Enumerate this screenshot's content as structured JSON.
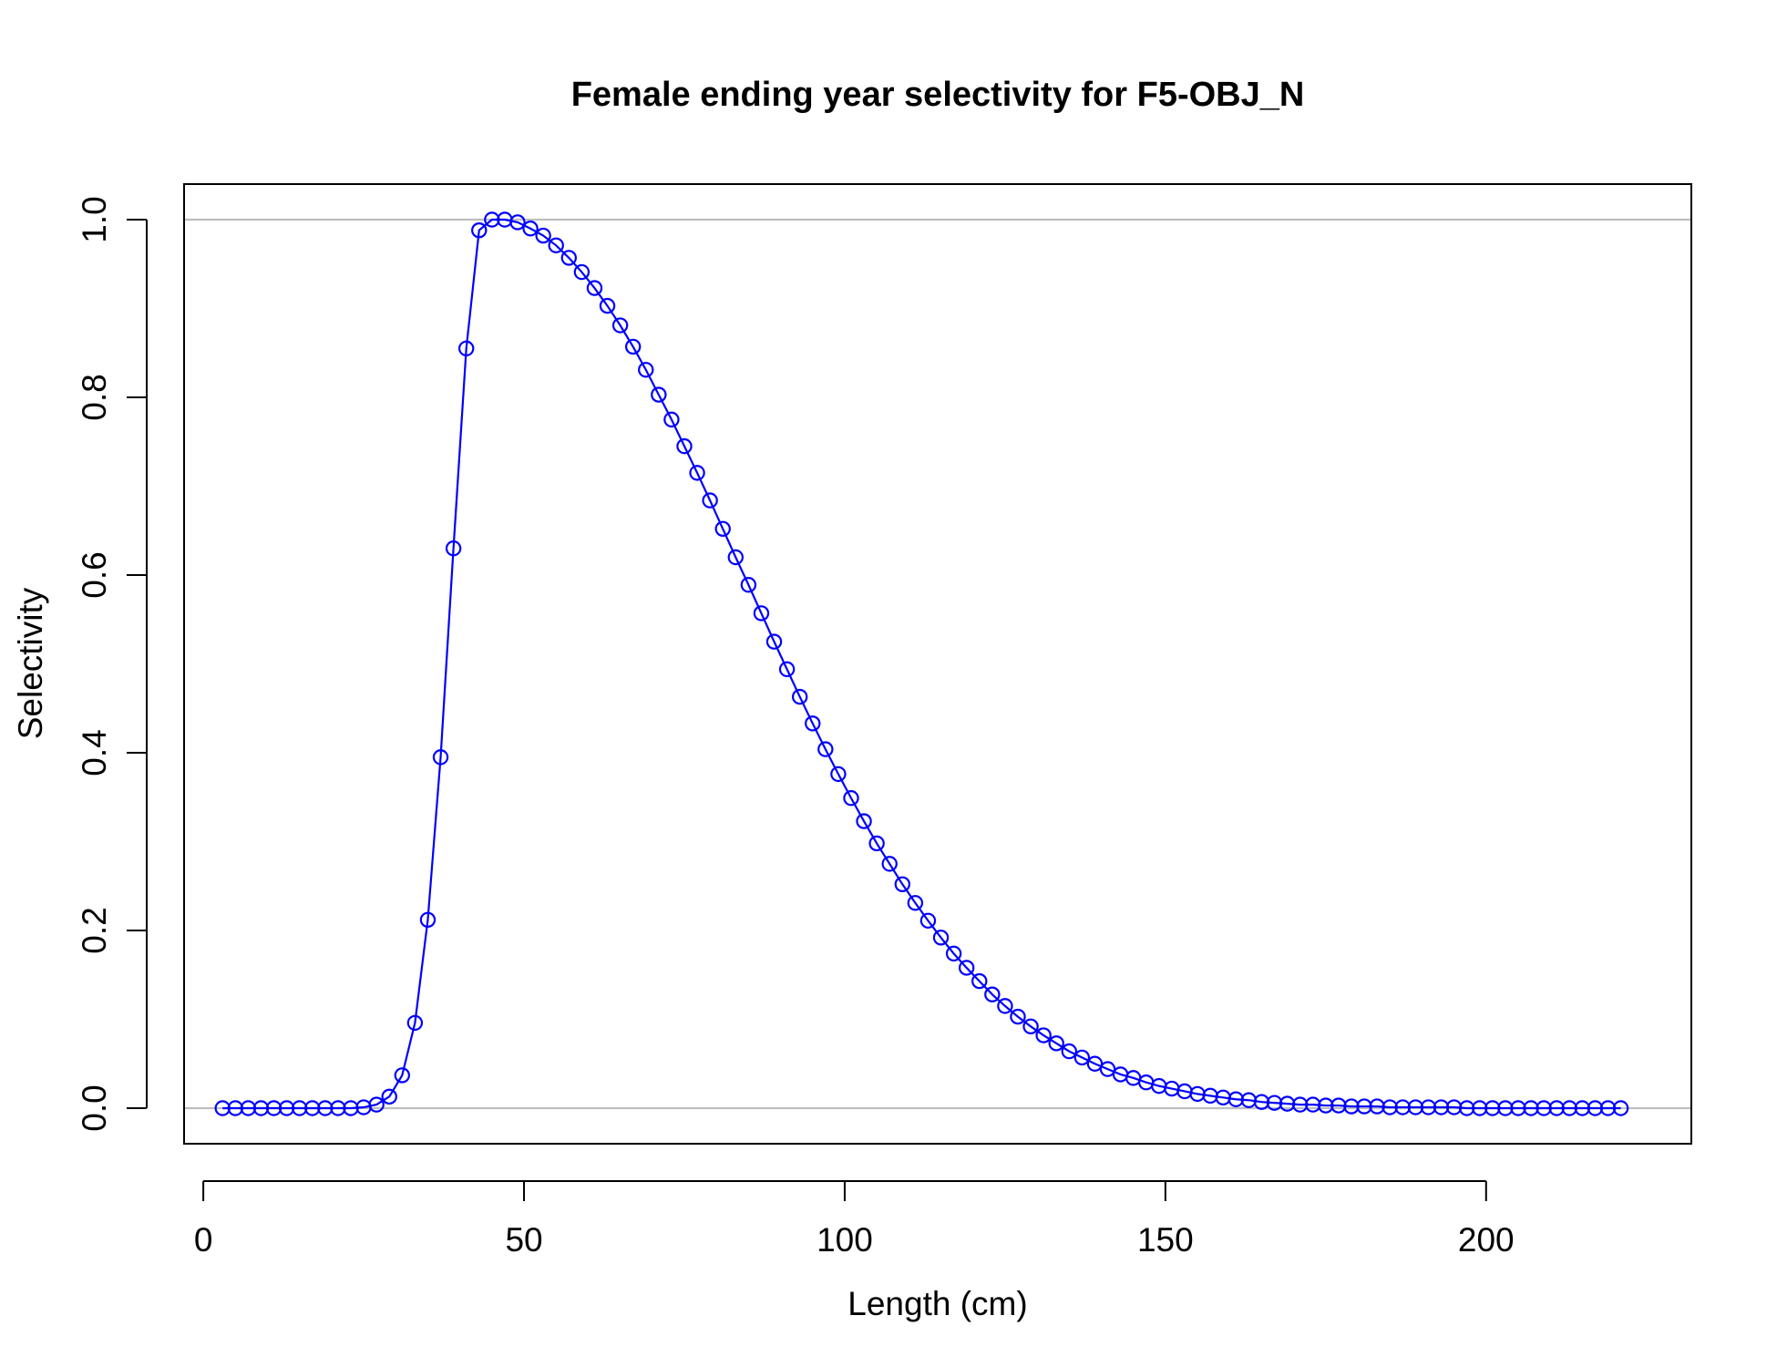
{
  "chart_data": {
    "type": "line",
    "title": "Female ending year selectivity for F5-OBJ_N",
    "xlabel": "Length (cm)",
    "ylabel": "Selectivity",
    "xlim": [
      -3,
      232
    ],
    "ylim": [
      -0.04,
      1.04
    ],
    "x_ticks": [
      0,
      50,
      100,
      150,
      200
    ],
    "y_ticks": [
      0.0,
      0.2,
      0.4,
      0.6,
      0.8,
      1.0
    ],
    "x_tick_labels": [
      "0",
      "50",
      "100",
      "150",
      "200"
    ],
    "y_tick_labels": [
      "0.0",
      "0.2",
      "0.4",
      "0.6",
      "0.8",
      "1.0"
    ],
    "reference_lines_y": [
      0,
      1
    ],
    "grid": false,
    "markers": "open-circle",
    "series": [
      {
        "color": "#0000ff",
        "x": [
          3,
          5,
          7,
          9,
          11,
          13,
          15,
          17,
          19,
          21,
          23,
          25,
          27,
          29,
          31,
          33,
          35,
          37,
          39,
          41,
          43,
          45,
          47,
          49,
          51,
          53,
          55,
          57,
          59,
          61,
          63,
          65,
          67,
          69,
          71,
          73,
          75,
          77,
          79,
          81,
          83,
          85,
          87,
          89,
          91,
          93,
          95,
          97,
          99,
          101,
          103,
          105,
          107,
          109,
          111,
          113,
          115,
          117,
          119,
          121,
          123,
          125,
          127,
          129,
          131,
          133,
          135,
          137,
          139,
          141,
          143,
          145,
          147,
          149,
          151,
          153,
          155,
          157,
          159,
          161,
          163,
          165,
          167,
          169,
          171,
          173,
          175,
          177,
          179,
          181,
          183,
          185,
          187,
          189,
          191,
          193,
          195,
          197,
          199,
          201,
          203,
          205,
          207,
          209,
          211,
          213,
          215,
          217,
          219,
          221
        ],
        "values": [
          0.0,
          0.0,
          0.0,
          0.0,
          0.0,
          0.0,
          0.0,
          0.0,
          0.0,
          0.0,
          0.0,
          0.001,
          0.004,
          0.013,
          0.037,
          0.096,
          0.212,
          0.395,
          0.63,
          0.855,
          0.988,
          1.0,
          1.0,
          0.997,
          0.99,
          0.982,
          0.971,
          0.957,
          0.941,
          0.923,
          0.903,
          0.881,
          0.857,
          0.831,
          0.803,
          0.775,
          0.745,
          0.715,
          0.684,
          0.652,
          0.62,
          0.589,
          0.557,
          0.525,
          0.494,
          0.463,
          0.433,
          0.404,
          0.376,
          0.349,
          0.323,
          0.298,
          0.275,
          0.252,
          0.231,
          0.211,
          0.192,
          0.174,
          0.158,
          0.143,
          0.128,
          0.115,
          0.103,
          0.092,
          0.082,
          0.073,
          0.064,
          0.057,
          0.05,
          0.044,
          0.038,
          0.034,
          0.029,
          0.025,
          0.022,
          0.019,
          0.016,
          0.014,
          0.012,
          0.01,
          0.009,
          0.007,
          0.006,
          0.005,
          0.004,
          0.004,
          0.003,
          0.003,
          0.002,
          0.002,
          0.002,
          0.001,
          0.001,
          0.001,
          0.001,
          0.001,
          0.001,
          0.0,
          0.0,
          0.0,
          0.0,
          0.0,
          0.0,
          0.0,
          0.0,
          0.0,
          0.0,
          0.0,
          0.0,
          0.0
        ]
      }
    ]
  }
}
